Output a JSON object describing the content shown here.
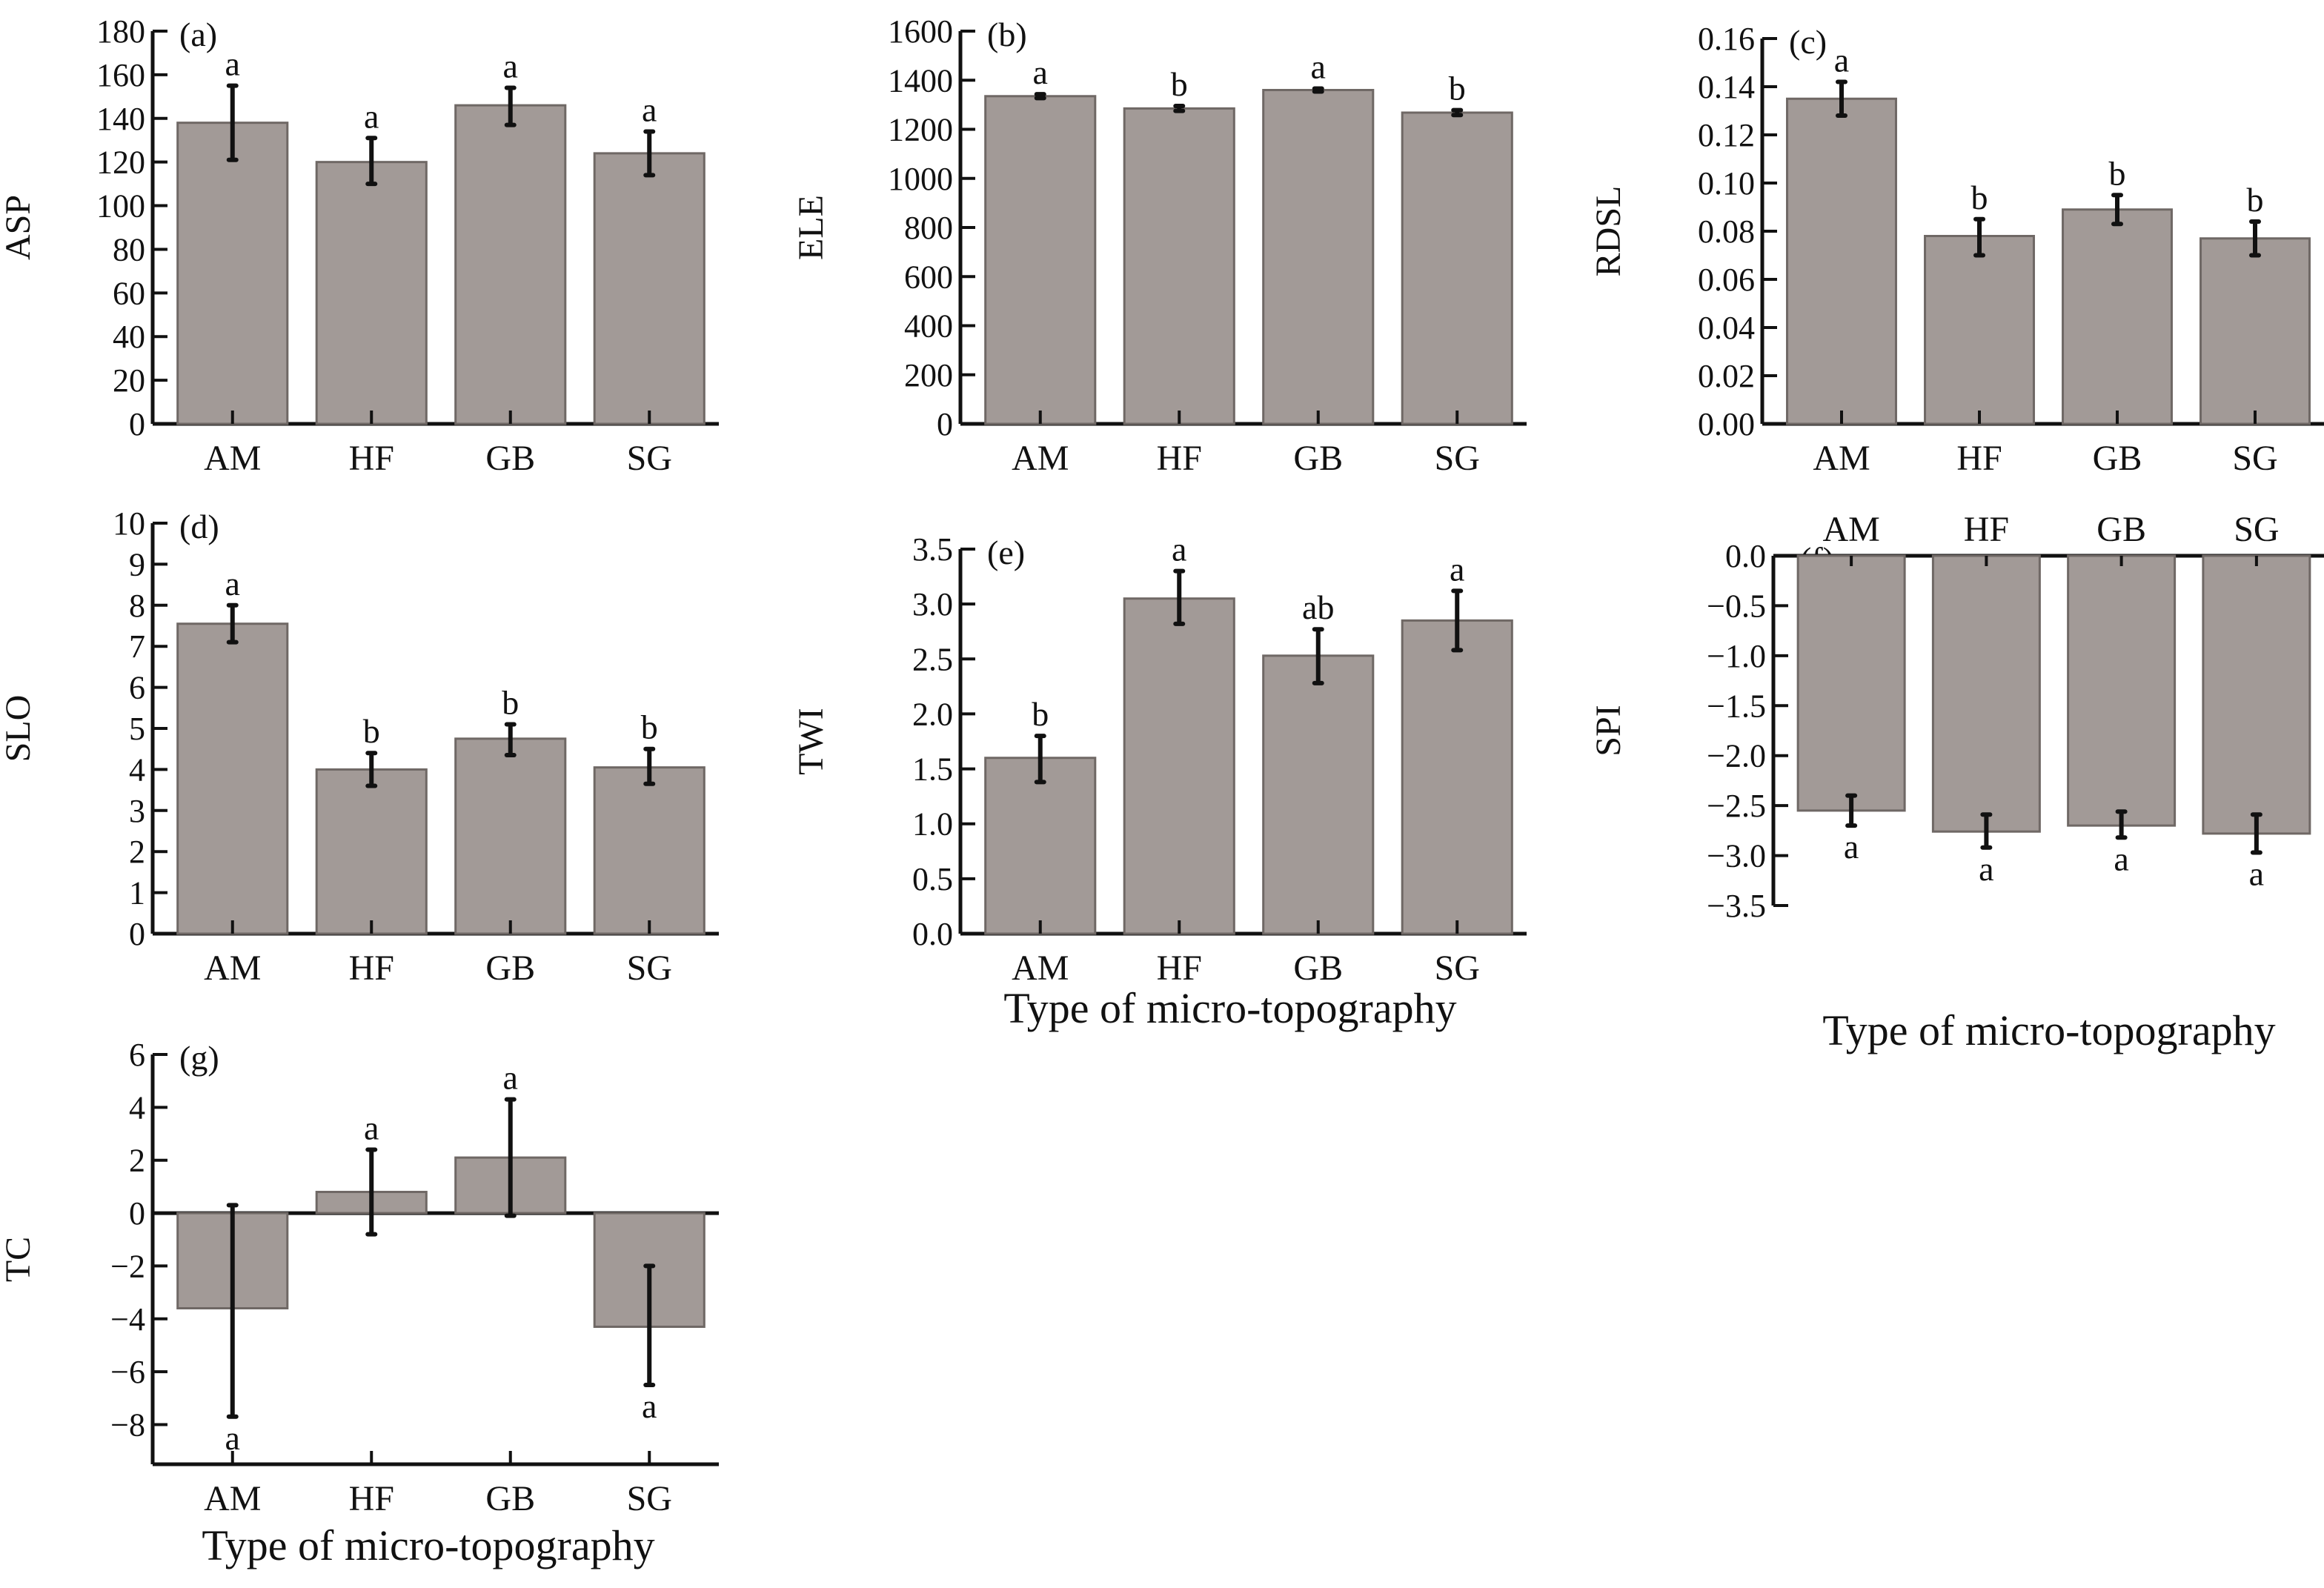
{
  "figure": {
    "x_axis_title": "Type of micro-topography"
  },
  "chart_data": [
    {
      "type": "bar",
      "panel": "(a)",
      "title": "",
      "xlabel": "",
      "ylabel": "ASP",
      "categories": [
        "AM",
        "HF",
        "GB",
        "SG"
      ],
      "values": [
        138,
        120,
        146,
        124
      ],
      "error_low": [
        121,
        110,
        137,
        114
      ],
      "error_high": [
        155,
        131,
        154,
        134
      ],
      "significance": [
        "a",
        "a",
        "a",
        "a"
      ],
      "ylim": [
        0,
        180
      ],
      "yticks": [
        0,
        20,
        40,
        60,
        80,
        100,
        120,
        140,
        160,
        180
      ],
      "ytick_labels": [
        "0",
        "20",
        "40",
        "60",
        "80",
        "100",
        "120",
        "140",
        "160",
        "180"
      ],
      "grid": false,
      "legend": "none"
    },
    {
      "type": "bar",
      "panel": "(b)",
      "title": "",
      "xlabel": "",
      "ylabel": "ELE",
      "categories": [
        "AM",
        "HF",
        "GB",
        "SG"
      ],
      "values": [
        1335,
        1285,
        1360,
        1268
      ],
      "error_low": [
        1327,
        1275,
        1354,
        1258
      ],
      "error_high": [
        1343,
        1295,
        1366,
        1278
      ],
      "significance": [
        "a",
        "b",
        "a",
        "b"
      ],
      "ylim": [
        0,
        1600
      ],
      "yticks": [
        0,
        200,
        400,
        600,
        800,
        1000,
        1200,
        1400,
        1600
      ],
      "ytick_labels": [
        "0",
        "200",
        "400",
        "600",
        "800",
        "1000",
        "1200",
        "1400",
        "1600"
      ],
      "grid": false,
      "legend": "none"
    },
    {
      "type": "bar",
      "panel": "(c)",
      "title": "",
      "xlabel": "",
      "ylabel": "RDSL",
      "categories": [
        "AM",
        "HF",
        "GB",
        "SG"
      ],
      "values": [
        0.135,
        0.078,
        0.089,
        0.077
      ],
      "error_low": [
        0.128,
        0.07,
        0.083,
        0.07
      ],
      "error_high": [
        0.142,
        0.085,
        0.095,
        0.084
      ],
      "significance": [
        "a",
        "b",
        "b",
        "b"
      ],
      "ylim": [
        0,
        0.16
      ],
      "yticks": [
        0,
        0.02,
        0.04,
        0.06,
        0.08,
        0.1,
        0.12,
        0.14,
        0.16
      ],
      "ytick_labels": [
        "0.00",
        "0.02",
        "0.04",
        "0.06",
        "0.08",
        "0.10",
        "0.12",
        "0.14",
        "0.16"
      ],
      "grid": false,
      "legend": "none"
    },
    {
      "type": "bar",
      "panel": "(d)",
      "title": "",
      "xlabel": "",
      "ylabel": "SLO",
      "categories": [
        "AM",
        "HF",
        "GB",
        "SG"
      ],
      "values": [
        7.55,
        4.0,
        4.75,
        4.05
      ],
      "error_low": [
        7.1,
        3.6,
        4.35,
        3.65
      ],
      "error_high": [
        8.0,
        4.4,
        5.1,
        4.5
      ],
      "significance": [
        "a",
        "b",
        "b",
        "b"
      ],
      "ylim": [
        0,
        10
      ],
      "yticks": [
        0,
        1,
        2,
        3,
        4,
        5,
        6,
        7,
        8,
        9,
        10
      ],
      "ytick_labels": [
        "0",
        "1",
        "2",
        "3",
        "4",
        "5",
        "6",
        "7",
        "8",
        "9",
        "10"
      ],
      "grid": false,
      "legend": "none"
    },
    {
      "type": "bar",
      "panel": "(e)",
      "title": "",
      "xlabel": "Type of micro-topography",
      "ylabel": "TWI",
      "categories": [
        "AM",
        "HF",
        "GB",
        "SG"
      ],
      "values": [
        1.6,
        3.05,
        2.53,
        2.85
      ],
      "error_low": [
        1.38,
        2.82,
        2.28,
        2.58
      ],
      "error_high": [
        1.8,
        3.3,
        2.77,
        3.12
      ],
      "significance": [
        "b",
        "a",
        "ab",
        "a"
      ],
      "ylim": [
        0,
        3.5
      ],
      "yticks": [
        0,
        0.5,
        1.0,
        1.5,
        2.0,
        2.5,
        3.0,
        3.5
      ],
      "ytick_labels": [
        "0.0",
        "0.5",
        "1.0",
        "1.5",
        "2.0",
        "2.5",
        "3.0",
        "3.5"
      ],
      "grid": false,
      "legend": "none"
    },
    {
      "type": "bar",
      "panel": "(f)",
      "title": "",
      "xlabel": "Type of micro-topography",
      "ylabel": "SPI",
      "categories": [
        "AM",
        "HF",
        "GB",
        "SG"
      ],
      "values": [
        -2.55,
        -2.76,
        -2.7,
        -2.78
      ],
      "error_low": [
        -2.7,
        -2.92,
        -2.82,
        -2.97
      ],
      "error_high": [
        -2.4,
        -2.59,
        -2.56,
        -2.59
      ],
      "significance": [
        "a",
        "a",
        "a",
        "a"
      ],
      "ylim": [
        -3.5,
        0
      ],
      "yticks": [
        0,
        -0.5,
        -1.0,
        -1.5,
        -2.0,
        -2.5,
        -3.0,
        -3.5
      ],
      "ytick_labels": [
        "0.0",
        "−0.5",
        "−1.0",
        "−1.5",
        "−2.0",
        "−2.5",
        "−3.0",
        "−3.5"
      ],
      "category_axis_position": "top",
      "grid": false,
      "legend": "none"
    },
    {
      "type": "bar",
      "panel": "(g)",
      "title": "",
      "xlabel": "Type of micro-topography",
      "ylabel": "TC",
      "categories": [
        "AM",
        "HF",
        "GB",
        "SG"
      ],
      "values": [
        -3.6,
        0.8,
        2.1,
        -4.3
      ],
      "error_low": [
        -7.7,
        -0.8,
        -0.1,
        -6.5
      ],
      "error_high": [
        0.3,
        2.4,
        4.3,
        -2.0
      ],
      "significance": [
        "a",
        "a",
        "a",
        "a"
      ],
      "ylim": [
        -9.5,
        6
      ],
      "yticks": [
        6,
        4,
        2,
        0,
        -2,
        -4,
        -6,
        -8
      ],
      "ytick_labels": [
        "6",
        "4",
        "2",
        "0",
        "−2",
        "−4",
        "−6",
        "−8"
      ],
      "grid": false,
      "legend": "none"
    }
  ]
}
